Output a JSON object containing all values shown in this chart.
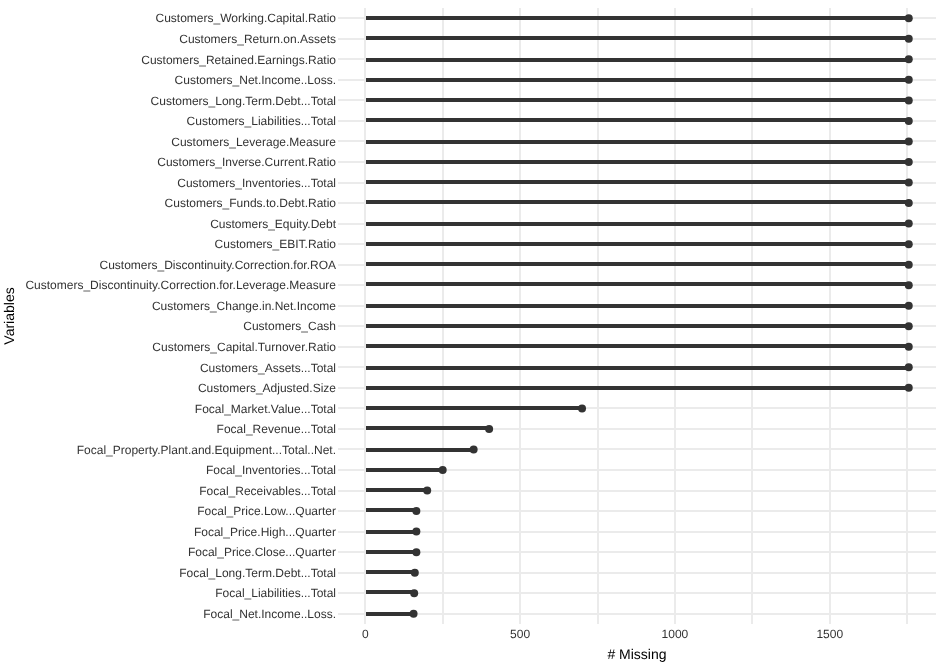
{
  "chart_data": {
    "type": "lollipop",
    "orientation": "horizontal",
    "xlabel": "# Missing",
    "ylabel": "Variables",
    "categories": [
      "Customers_Working.Capital.Ratio",
      "Customers_Return.on.Assets",
      "Customers_Retained.Earnings.Ratio",
      "Customers_Net.Income..Loss.",
      "Customers_Long.Term.Debt...Total",
      "Customers_Liabilities...Total",
      "Customers_Leverage.Measure",
      "Customers_Inverse.Current.Ratio",
      "Customers_Inventories...Total",
      "Customers_Funds.to.Debt.Ratio",
      "Customers_Equity.Debt",
      "Customers_EBIT.Ratio",
      "Customers_Discontinuity.Correction.for.ROA",
      "Customers_Discontinuity.Correction.for.Leverage.Measure",
      "Customers_Change.in.Net.Income",
      "Customers_Cash",
      "Customers_Capital.Turnover.Ratio",
      "Customers_Assets...Total",
      "Customers_Adjusted.Size",
      "Focal_Market.Value...Total",
      "Focal_Revenue...Total",
      "Focal_Property.Plant.and.Equipment...Total..Net.",
      "Focal_Inventories...Total",
      "Focal_Receivables...Total",
      "Focal_Price.Low...Quarter",
      "Focal_Price.High...Quarter",
      "Focal_Price.Close...Quarter",
      "Focal_Long.Term.Debt...Total",
      "Focal_Liabilities...Total",
      "Focal_Net.Income..Loss."
    ],
    "values": [
      1755,
      1755,
      1755,
      1755,
      1755,
      1755,
      1755,
      1755,
      1755,
      1755,
      1755,
      1755,
      1755,
      1755,
      1755,
      1755,
      1755,
      1755,
      1755,
      700,
      400,
      350,
      250,
      200,
      165,
      165,
      165,
      160,
      158,
      156
    ],
    "color": "#333333",
    "marker": "circle",
    "xlim": [
      -88,
      1843
    ],
    "xticks": [
      0,
      {
        "value": 250,
        "label": null
      },
      500,
      {
        "value": 750,
        "label": null
      },
      1000,
      {
        "value": 1250,
        "label": null
      },
      1500,
      {
        "value": 1750,
        "label": null
      }
    ],
    "grid": true
  }
}
